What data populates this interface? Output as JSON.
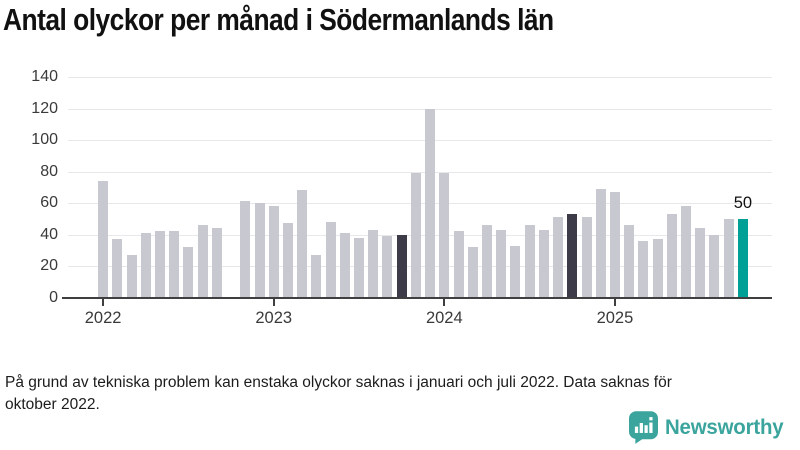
{
  "title": "Antal olyckor per månad i Södermanlands län",
  "footnote": {
    "line1": "På grund av tekniska problem kan enstaka olyckor saknas i januari och juli 2022. Data saknas för",
    "line2": "oktober 2022."
  },
  "branding": {
    "logo_text": "Newsworthy",
    "logo_icon": "bar-chart-speech-bubble-icon",
    "logo_color": "#3aa49d"
  },
  "colors": {
    "bar_default": "#c8c8d0",
    "bar_highlight_dark": "#3c3b47",
    "bar_highlight_current": "#00a096",
    "gridline": "#e8e8ea",
    "axis": "#3f3f3f",
    "tick_text": "#3a3a3a",
    "title_text": "#111111"
  },
  "chart_data": {
    "type": "bar",
    "title": "Antal olyckor per månad i Södermanlands län",
    "xlabel": "",
    "ylabel": "",
    "ylim": [
      0,
      140
    ],
    "yticks": [
      0,
      20,
      40,
      60,
      80,
      100,
      120,
      140
    ],
    "grid": true,
    "year_labels": [
      "2022",
      "2023",
      "2024",
      "2025"
    ],
    "months": [
      "2022-01",
      "2022-02",
      "2022-03",
      "2022-04",
      "2022-05",
      "2022-06",
      "2022-07",
      "2022-08",
      "2022-09",
      "2022-10",
      "2022-11",
      "2022-12",
      "2023-01",
      "2023-02",
      "2023-03",
      "2023-04",
      "2023-05",
      "2023-06",
      "2023-07",
      "2023-08",
      "2023-09",
      "2023-10",
      "2023-11",
      "2023-12",
      "2024-01",
      "2024-02",
      "2024-03",
      "2024-04",
      "2024-05",
      "2024-06",
      "2024-07",
      "2024-08",
      "2024-09",
      "2024-10",
      "2024-11",
      "2024-12",
      "2025-01",
      "2025-02",
      "2025-03",
      "2025-04",
      "2025-05",
      "2025-06",
      "2025-07",
      "2025-08",
      "2025-09",
      "2025-10"
    ],
    "values": [
      74,
      37,
      27,
      41,
      42,
      42,
      32,
      46,
      44,
      null,
      61,
      60,
      58,
      47,
      68,
      27,
      48,
      41,
      38,
      43,
      39,
      40,
      79,
      120,
      79,
      42,
      32,
      46,
      43,
      33,
      46,
      43,
      51,
      53,
      51,
      69,
      67,
      46,
      36,
      37,
      53,
      58,
      44,
      40,
      50,
      50
    ],
    "missing_months": [
      "2022-10"
    ],
    "highlight_dark_months": [
      "2023-10",
      "2024-10"
    ],
    "highlight_current_month": "2025-10",
    "annotation": {
      "month": "2025-10",
      "label": "50"
    },
    "legend": null
  }
}
